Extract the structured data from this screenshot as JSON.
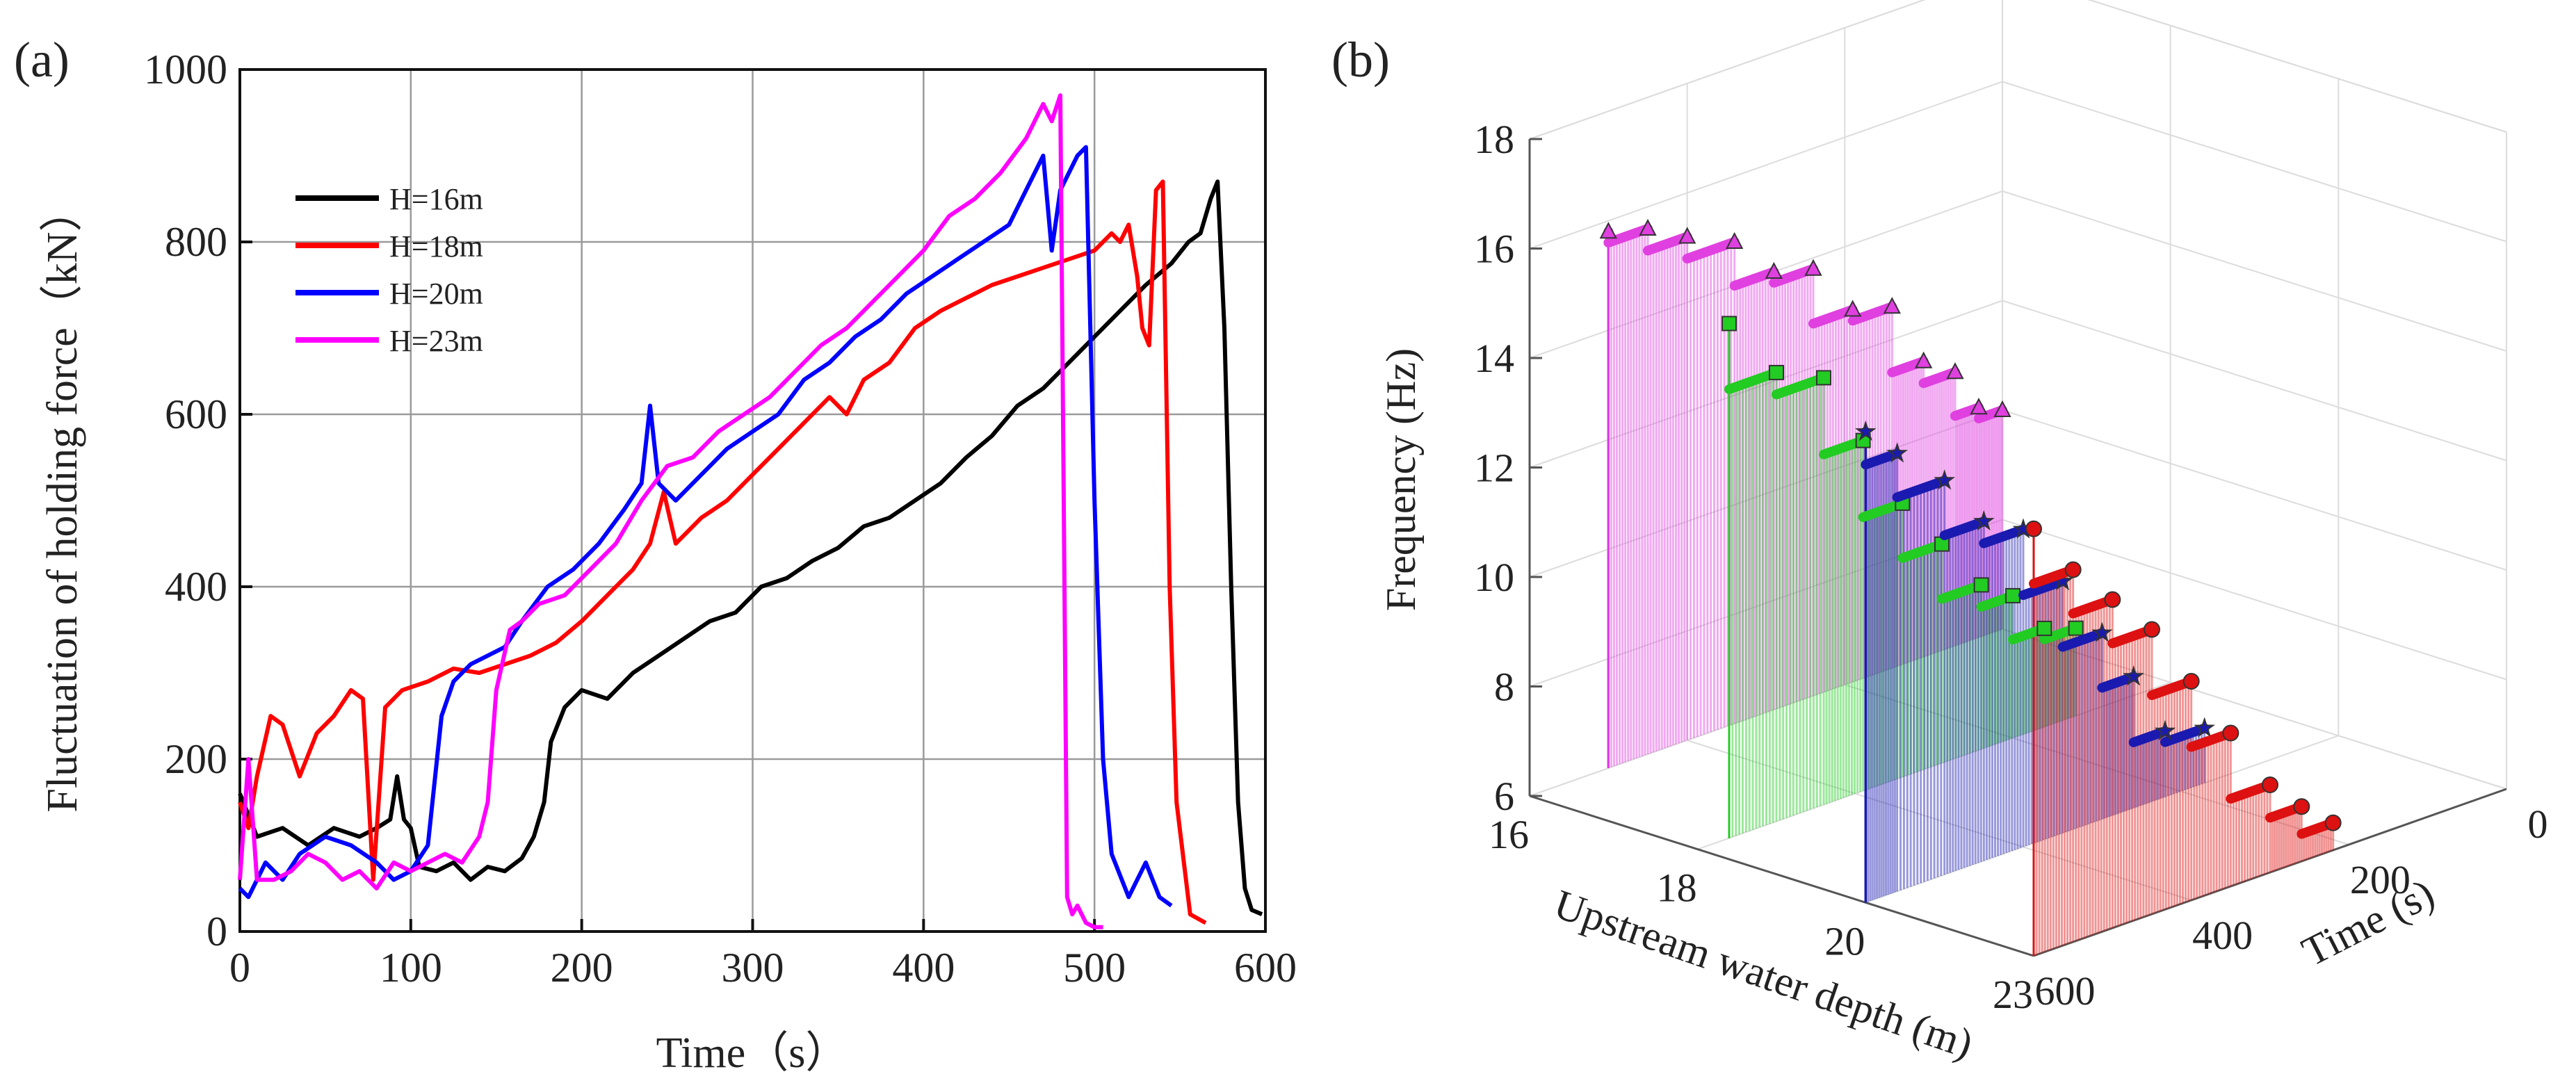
{
  "panel_a": {
    "label": "(a)",
    "chart_data": {
      "type": "line",
      "xlabel": "Time（s）",
      "ylabel": "Fluctuation of  holding force（kN）",
      "xlim": [
        0,
        600
      ],
      "ylim": [
        0,
        1000
      ],
      "xticks": [
        0,
        100,
        200,
        300,
        400,
        500,
        600
      ],
      "yticks": [
        0,
        200,
        400,
        600,
        800,
        1000
      ],
      "grid": true,
      "legend_position": "top-left",
      "series": [
        {
          "name": "H=16m",
          "color": "#000000",
          "x": [
            0,
            10,
            25,
            40,
            55,
            70,
            80,
            88,
            92,
            96,
            100,
            105,
            115,
            125,
            135,
            145,
            155,
            165,
            172,
            178,
            182,
            190,
            200,
            215,
            230,
            245,
            260,
            275,
            290,
            305,
            320,
            335,
            350,
            365,
            380,
            395,
            410,
            425,
            440,
            455,
            470,
            485,
            500,
            515,
            530,
            545,
            555,
            562,
            568,
            572,
            576,
            580,
            584,
            588,
            592,
            598
          ],
          "y": [
            160,
            110,
            120,
            100,
            120,
            110,
            120,
            130,
            180,
            130,
            120,
            75,
            70,
            80,
            60,
            75,
            70,
            85,
            110,
            150,
            220,
            260,
            280,
            270,
            300,
            320,
            340,
            360,
            370,
            400,
            410,
            430,
            445,
            470,
            480,
            500,
            520,
            550,
            575,
            610,
            630,
            660,
            690,
            720,
            750,
            775,
            800,
            810,
            850,
            870,
            700,
            400,
            150,
            50,
            25,
            20
          ]
        },
        {
          "name": "H=18m",
          "color": "#ff0000",
          "x": [
            0,
            5,
            10,
            18,
            25,
            35,
            45,
            55,
            65,
            72,
            78,
            85,
            95,
            110,
            125,
            140,
            155,
            170,
            185,
            200,
            215,
            230,
            240,
            248,
            255,
            270,
            285,
            300,
            315,
            330,
            345,
            355,
            365,
            380,
            395,
            410,
            425,
            440,
            455,
            470,
            485,
            500,
            510,
            515,
            520,
            525,
            528,
            532,
            536,
            540,
            544,
            548,
            556,
            565
          ],
          "y": [
            150,
            120,
            180,
            250,
            240,
            180,
            230,
            250,
            280,
            270,
            60,
            260,
            280,
            290,
            305,
            300,
            310,
            320,
            335,
            360,
            390,
            420,
            450,
            510,
            450,
            480,
            500,
            530,
            560,
            590,
            620,
            600,
            640,
            660,
            700,
            720,
            735,
            750,
            760,
            770,
            780,
            790,
            810,
            800,
            820,
            760,
            700,
            680,
            860,
            870,
            400,
            150,
            20,
            10
          ]
        },
        {
          "name": "H=20m",
          "color": "#0000ff",
          "x": [
            0,
            5,
            15,
            25,
            35,
            50,
            65,
            80,
            90,
            100,
            110,
            118,
            125,
            135,
            145,
            155,
            165,
            180,
            195,
            210,
            225,
            235,
            240,
            245,
            255,
            270,
            285,
            300,
            315,
            330,
            345,
            360,
            375,
            390,
            405,
            420,
            435,
            450,
            460,
            470,
            475,
            480,
            490,
            495,
            500,
            505,
            510,
            520,
            530,
            538,
            545
          ],
          "y": [
            50,
            40,
            80,
            60,
            90,
            110,
            100,
            80,
            60,
            70,
            100,
            250,
            290,
            310,
            320,
            330,
            360,
            400,
            420,
            450,
            490,
            520,
            610,
            520,
            500,
            530,
            560,
            580,
            600,
            640,
            660,
            690,
            710,
            740,
            760,
            780,
            800,
            820,
            860,
            900,
            790,
            860,
            900,
            910,
            500,
            200,
            90,
            40,
            80,
            40,
            30
          ]
        },
        {
          "name": "H=23m",
          "color": "#ff00ff",
          "x": [
            0,
            5,
            10,
            20,
            30,
            40,
            50,
            60,
            70,
            80,
            90,
            100,
            110,
            120,
            130,
            140,
            145,
            150,
            158,
            165,
            175,
            190,
            205,
            220,
            235,
            250,
            265,
            280,
            295,
            310,
            325,
            340,
            355,
            370,
            385,
            400,
            415,
            430,
            445,
            460,
            470,
            475,
            480,
            484,
            487,
            490,
            495,
            500,
            505
          ],
          "y": [
            60,
            200,
            60,
            60,
            70,
            90,
            80,
            60,
            70,
            50,
            80,
            70,
            80,
            90,
            80,
            110,
            150,
            280,
            350,
            360,
            380,
            390,
            420,
            450,
            500,
            540,
            550,
            580,
            600,
            620,
            650,
            680,
            700,
            730,
            760,
            790,
            830,
            850,
            880,
            920,
            960,
            940,
            970,
            40,
            20,
            30,
            10,
            5,
            5
          ]
        }
      ]
    }
  },
  "panel_b": {
    "label": "(b)",
    "chart_data": {
      "type": "3d-stem",
      "zlabel": "Frequency (Hz)",
      "xlabel": "Upstream water depth (m)",
      "ylabel": "Time (s)",
      "zlim": [
        6,
        18
      ],
      "zticks": [
        6,
        8,
        10,
        12,
        14,
        16,
        18
      ],
      "x_categories": [
        "16",
        "18",
        "20",
        "23"
      ],
      "y_ticks": [
        0,
        200,
        400,
        600
      ],
      "series": [
        {
          "name": "H=16m",
          "color": "#e040e0",
          "marker": "triangle",
          "time": [
            0,
            30,
            60,
            100,
            140,
            190,
            240,
            290,
            340,
            400,
            450,
            500
          ],
          "frequency": [
            10,
            10.2,
            11,
            11.4,
            12.6,
            12.8,
            13.8,
            14,
            14.8,
            15.2,
            15.6,
            15.8
          ]
        },
        {
          "name": "H=18m",
          "color": "#22cc22",
          "marker": "square",
          "time": [
            120,
            160,
            200,
            240,
            290,
            340,
            390,
            440,
            500,
            560
          ],
          "frequency": [
            7.6,
            7.8,
            8.6,
            9.0,
            10.0,
            11.0,
            12.4,
            13.8,
            14.2,
            15.4
          ]
        },
        {
          "name": "H=20m",
          "color": "#1a1ab0",
          "marker": "star",
          "time": [
            170,
            220,
            260,
            300,
            350,
            400,
            450,
            500,
            560,
            600
          ],
          "frequency": [
            7.0,
            7.2,
            8.4,
            9.4,
            10.6,
            11.8,
            12.2,
            13.2,
            14.0,
            14.6
          ]
        },
        {
          "name": "H=23m",
          "color": "#dd1111",
          "marker": "circle",
          "time": [
            220,
            260,
            300,
            350,
            400,
            450,
            500,
            550,
            600
          ],
          "frequency": [
            6.5,
            7.0,
            7.6,
            8.8,
            10.0,
            11.2,
            12.0,
            12.8,
            13.8
          ]
        }
      ]
    }
  }
}
